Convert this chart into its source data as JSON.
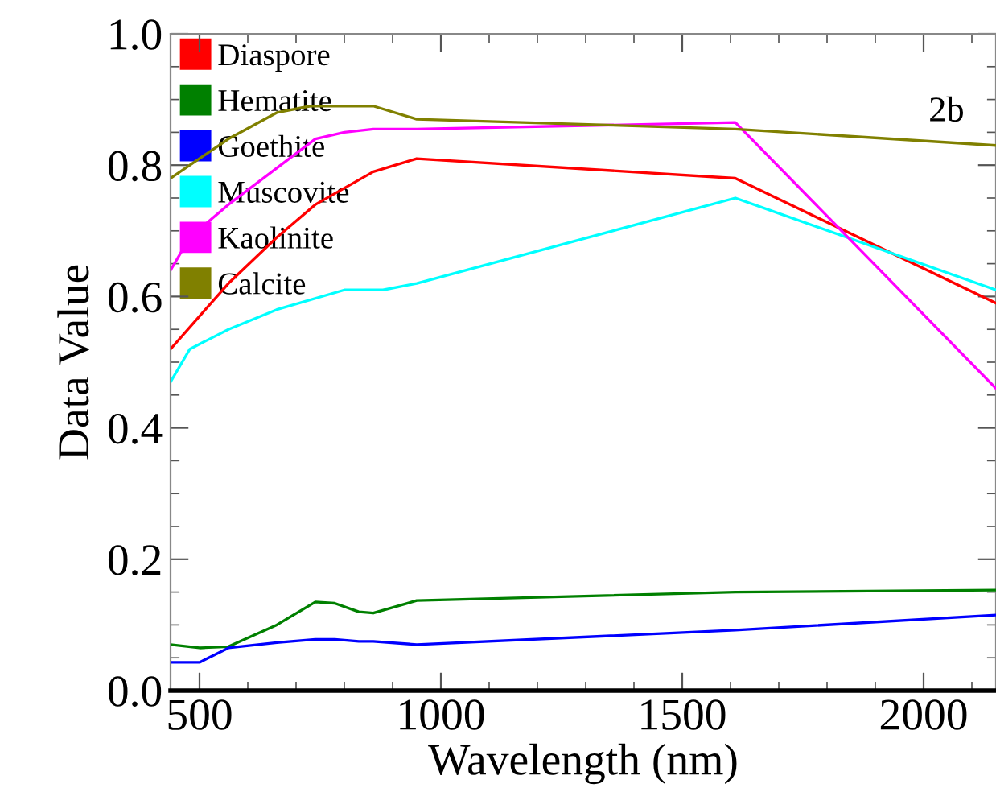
{
  "chart_data": {
    "type": "line",
    "xlabel": "Wavelength (nm)",
    "ylabel": "Data Value",
    "annotations": [
      "2b"
    ],
    "xlim": [
      440,
      2150
    ],
    "ylim": [
      0,
      1.0
    ],
    "xticks": [
      500,
      1000,
      1500,
      2000
    ],
    "yticks": [
      {
        "value": 0,
        "label": "0.0"
      },
      0.2,
      0.4,
      0.6,
      0.8,
      {
        "value": 1,
        "label": "1.0"
      }
    ],
    "legend": "top left",
    "grid": false,
    "marker": "none",
    "line_style": "solid",
    "series": [
      {
        "name": "Diaspore",
        "color": "#ff0000",
        "x": [
          440,
          500,
          560,
          660,
          740,
          860,
          950,
          1610,
          2150
        ],
        "values": [
          0.52,
          0.57,
          0.62,
          0.69,
          0.74,
          0.79,
          0.81,
          0.78,
          0.59
        ]
      },
      {
        "name": "Hematite",
        "color": "#008000",
        "x": [
          440,
          500,
          560,
          660,
          740,
          780,
          830,
          860,
          950,
          1610,
          2150
        ],
        "values": [
          0.07,
          0.065,
          0.067,
          0.1,
          0.135,
          0.133,
          0.12,
          0.118,
          0.137,
          0.15,
          0.153
        ]
      },
      {
        "name": "Goethite",
        "color": "#0000ff",
        "x": [
          440,
          500,
          560,
          660,
          740,
          780,
          830,
          860,
          950,
          1610,
          2150
        ],
        "values": [
          0.043,
          0.043,
          0.065,
          0.073,
          0.078,
          0.078,
          0.075,
          0.075,
          0.07,
          0.092,
          0.115
        ]
      },
      {
        "name": "Muscovite",
        "color": "#00ffff",
        "x": [
          440,
          480,
          560,
          660,
          800,
          880,
          950,
          1610,
          2150
        ],
        "values": [
          0.47,
          0.52,
          0.55,
          0.58,
          0.61,
          0.61,
          0.62,
          0.75,
          0.61
        ]
      },
      {
        "name": "Kaolinite",
        "color": "#ff00ff",
        "x": [
          440,
          480,
          560,
          740,
          800,
          860,
          950,
          1610,
          2150
        ],
        "values": [
          0.64,
          0.69,
          0.74,
          0.84,
          0.85,
          0.855,
          0.855,
          0.865,
          0.46
        ]
      },
      {
        "name": "Calcite",
        "color": "#808000",
        "x": [
          440,
          560,
          660,
          730,
          860,
          950,
          1610,
          2150
        ],
        "values": [
          0.78,
          0.84,
          0.88,
          0.89,
          0.89,
          0.87,
          0.855,
          0.83
        ]
      }
    ]
  }
}
